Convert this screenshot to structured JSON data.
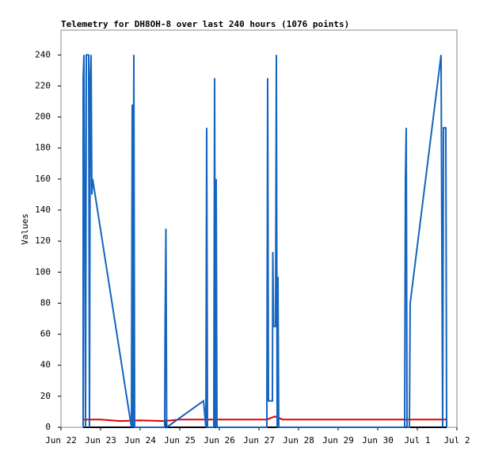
{
  "chart_data": {
    "type": "line",
    "title": "Telemetry for DH8OH-8 over last 240 hours (1076 points)",
    "y_label": "Values",
    "xlim": [
      0,
      10
    ],
    "ylim": [
      0,
      256
    ],
    "xticks": [
      {
        "value": 0,
        "label": "Jun 22"
      },
      {
        "value": 1,
        "label": "Jun 23"
      },
      {
        "value": 2,
        "label": "Jun 24"
      },
      {
        "value": 3,
        "label": "Jun 25"
      },
      {
        "value": 4,
        "label": "Jun 26"
      },
      {
        "value": 5,
        "label": "Jun 27"
      },
      {
        "value": 6,
        "label": "Jun 28"
      },
      {
        "value": 7,
        "label": "Jun 29"
      },
      {
        "value": 8,
        "label": "Jun 30"
      },
      {
        "value": 9,
        "label": "Jul 1"
      },
      {
        "value": 10,
        "label": "Jul 2"
      }
    ],
    "yticks": [
      0,
      20,
      40,
      60,
      80,
      100,
      120,
      140,
      160,
      180,
      200,
      220,
      240
    ],
    "series": [
      {
        "color": "#000000",
        "x": [
          0.56,
          2.62,
          2.63,
          2.64,
          9.74
        ],
        "values": [
          0,
          0,
          5,
          0,
          0
        ]
      },
      {
        "color": "#e00000",
        "x": [
          0.56,
          1.0,
          1.5,
          2.0,
          2.6,
          3.0,
          5.2,
          5.4,
          5.6,
          9.74
        ],
        "values": [
          5,
          5,
          4,
          4.5,
          4,
          5,
          5,
          7,
          5,
          5
        ]
      },
      {
        "color": "#1464c0",
        "x": [
          0.56,
          0.56,
          0.58,
          0.62,
          0.64,
          0.7,
          0.72,
          0.74,
          0.76,
          0.78,
          0.8,
          1.78,
          1.8,
          1.82,
          1.84,
          1.86,
          2.62,
          2.63,
          2.65,
          2.67,
          3.6,
          3.66,
          3.68,
          3.7,
          3.86,
          3.88,
          3.9,
          3.92,
          3.94,
          5.2,
          5.22,
          5.24,
          5.34,
          5.35,
          5.37,
          5.42,
          5.44,
          5.46,
          5.48,
          5.5,
          8.68,
          8.7,
          8.72,
          8.74,
          8.8,
          8.82,
          9.6,
          9.64,
          9.66,
          9.72,
          9.74
        ],
        "values": [
          0,
          225,
          240,
          0,
          240,
          240,
          0,
          225,
          240,
          150,
          160,
          0,
          208,
          0,
          240,
          0,
          0,
          65,
          128,
          0,
          17,
          0,
          193,
          0,
          0,
          225,
          0,
          160,
          0,
          0,
          225,
          17,
          17,
          113,
          65,
          65,
          240,
          0,
          97,
          0,
          0,
          160,
          193,
          0,
          0,
          80,
          240,
          0,
          193,
          193,
          0
        ]
      }
    ]
  }
}
